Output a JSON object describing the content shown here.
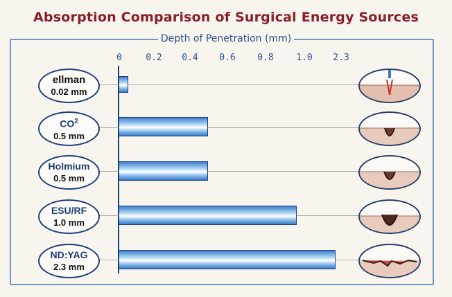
{
  "title": "Absorption Comparison of Surgical Energy Sources",
  "colors": {
    "title": "#8b1e2b",
    "accent": "#2b4f8a",
    "bar": "#3e7fcc",
    "tissue": "#e6c2b5"
  },
  "chart_data": {
    "type": "bar",
    "orientation": "horizontal",
    "title": "Absorption Comparison of Surgical Energy Sources",
    "xlabel": "Depth of Penetration (mm)",
    "ticks": [
      "0",
      "0.2",
      "0.4",
      "0.6",
      "0.8",
      "1.0",
      "2.3"
    ],
    "categories": [
      "ellman",
      "CO2",
      "Holmium",
      "ESU/RF",
      "ND:YAG"
    ],
    "category_labels": [
      {
        "name": "ellman",
        "sup": "",
        "depth": "0.02 mm"
      },
      {
        "name": "CO",
        "sup": "2",
        "depth": "0.5 mm"
      },
      {
        "name": "Holmium",
        "sup": "",
        "depth": "0.5 mm"
      },
      {
        "name": "ESU/RF",
        "sup": "",
        "depth": "1.0 mm"
      },
      {
        "name": "ND:YAG",
        "sup": "",
        "depth": "2.3 mm"
      }
    ],
    "values": [
      0.02,
      0.5,
      0.5,
      1.0,
      2.3
    ],
    "scale_note": "non-linear axis: the last tick 2.3 replaces 1.2"
  },
  "tissue_icons": [
    "ellman-incision-icon",
    "co2-crater-icon",
    "holmium-crater-icon",
    "esu-crater-icon",
    "ndyag-crater-icon"
  ]
}
